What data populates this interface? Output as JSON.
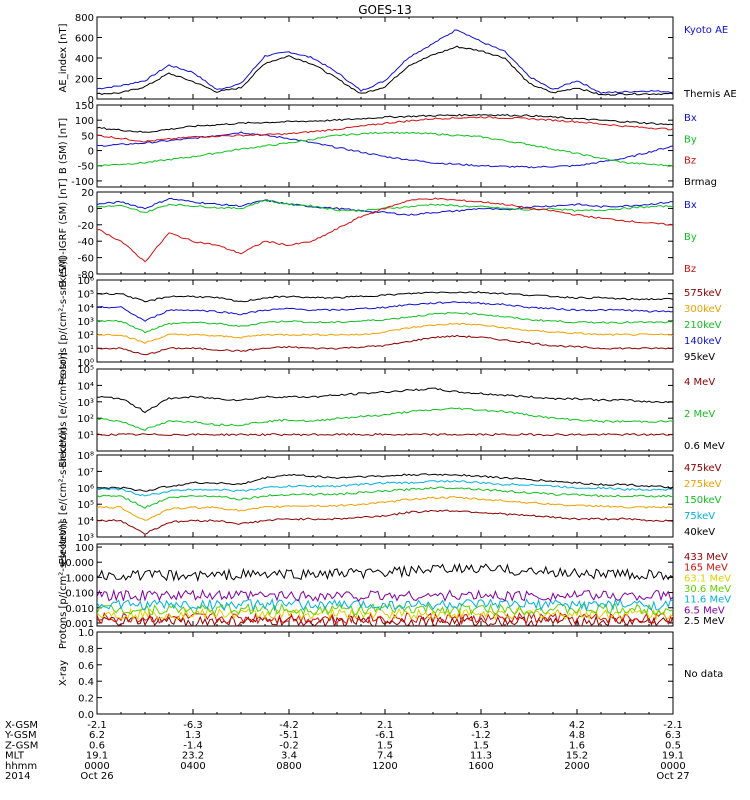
{
  "title": "GOES-13",
  "colors": {
    "black": "#000000",
    "blue": "#1010d0",
    "green": "#10c020",
    "red": "#d01010",
    "darkred": "#8b0000",
    "orange": "#f0a000",
    "cyan": "#00b0e0",
    "purple": "#8000a0",
    "yellow": "#e0d000",
    "lime": "#60d000"
  },
  "chart_data": [
    {
      "type": "line",
      "ylabel": "AE_index [nT]",
      "ylim": [
        0,
        800
      ],
      "ticks": [
        0,
        200,
        400,
        600,
        800
      ],
      "tick_labels": [
        "0",
        "200",
        "400",
        "600",
        "800"
      ],
      "log": false,
      "x_hours": [
        0,
        1,
        2,
        3,
        4,
        5,
        6,
        7,
        8,
        9,
        10,
        11,
        12,
        13,
        14,
        15,
        16,
        17,
        18,
        19,
        20,
        21,
        22,
        23,
        24
      ],
      "series": [
        {
          "name": "Kyoto AE",
          "color": "blue",
          "values": [
            100,
            130,
            180,
            330,
            260,
            90,
            150,
            420,
            460,
            400,
            260,
            80,
            180,
            410,
            540,
            680,
            560,
            460,
            220,
            90,
            180,
            60,
            70,
            80,
            70
          ]
        },
        {
          "name": "Themis AE",
          "color": "black",
          "values": [
            50,
            60,
            120,
            250,
            170,
            70,
            110,
            350,
            420,
            340,
            200,
            50,
            120,
            330,
            430,
            510,
            470,
            400,
            150,
            60,
            110,
            40,
            50,
            50,
            50
          ]
        }
      ]
    },
    {
      "type": "line",
      "ylabel": "B (SM) [nT]",
      "ylim": [
        -120,
        150
      ],
      "ticks": [
        -100,
        -50,
        0,
        50,
        100,
        150
      ],
      "tick_labels": [
        "-100",
        "-50",
        "0",
        "50",
        "100",
        "150"
      ],
      "log": false,
      "x_hours": [
        0,
        2,
        4,
        6,
        8,
        10,
        12,
        14,
        16,
        18,
        20,
        22,
        24
      ],
      "series": [
        {
          "name": "Bx",
          "color": "blue",
          "values": [
            15,
            25,
            40,
            60,
            40,
            10,
            -20,
            -40,
            -50,
            -55,
            -50,
            -25,
            15
          ]
        },
        {
          "name": "By",
          "color": "green",
          "values": [
            -50,
            -40,
            -20,
            5,
            25,
            50,
            60,
            55,
            45,
            20,
            -10,
            -40,
            -50
          ]
        },
        {
          "name": "Bz",
          "color": "red",
          "values": [
            50,
            30,
            45,
            50,
            55,
            70,
            90,
            105,
            110,
            105,
            95,
            80,
            70
          ]
        },
        {
          "name": "Brmag",
          "color": "black",
          "values": [
            75,
            60,
            80,
            90,
            95,
            100,
            110,
            115,
            118,
            115,
            105,
            95,
            85
          ]
        }
      ]
    },
    {
      "type": "line",
      "ylabel": "B (SM)-IGRF (SM) [nT]",
      "ylim": [
        -80,
        20
      ],
      "ticks": [
        -80,
        -60,
        -40,
        -20,
        0,
        20
      ],
      "tick_labels": [
        "-80",
        "-60",
        "-40",
        "-20",
        "0",
        "20"
      ],
      "log": false,
      "x_hours": [
        0,
        1,
        2,
        3,
        4,
        5,
        6,
        7,
        8,
        9,
        10,
        11,
        12,
        13,
        14,
        15,
        16,
        17,
        18,
        19,
        20,
        21,
        22,
        23,
        24
      ],
      "series": [
        {
          "name": "Bx",
          "color": "blue",
          "values": [
            5,
            8,
            0,
            12,
            8,
            5,
            3,
            10,
            5,
            2,
            0,
            -3,
            -5,
            -8,
            -5,
            -3,
            0,
            -2,
            2,
            3,
            5,
            2,
            3,
            5,
            8
          ]
        },
        {
          "name": "By",
          "color": "green",
          "values": [
            2,
            3,
            -5,
            5,
            3,
            1,
            0,
            10,
            5,
            3,
            -2,
            -3,
            0,
            2,
            5,
            3,
            2,
            0,
            -2,
            0,
            -3,
            -2,
            0,
            2,
            3
          ]
        },
        {
          "name": "Bz",
          "color": "red",
          "values": [
            -25,
            -40,
            -65,
            -30,
            -40,
            -45,
            -55,
            -40,
            -45,
            -40,
            -25,
            -10,
            0,
            10,
            12,
            10,
            8,
            5,
            0,
            -3,
            -8,
            -12,
            -15,
            -18,
            -20
          ]
        }
      ]
    },
    {
      "type": "line",
      "ylabel": "Protons [p/(cm²-s-sr-keV)]",
      "ylim": [
        0,
        6
      ],
      "ticks": [
        0,
        1,
        2,
        3,
        4,
        5,
        6
      ],
      "tick_labels": [
        "10⁰",
        "10¹",
        "10²",
        "10³",
        "10⁴",
        "10⁵",
        "10⁶"
      ],
      "log": true,
      "x_hours": [
        0,
        1,
        2,
        3,
        4,
        5,
        6,
        7,
        8,
        9,
        10,
        11,
        12,
        13,
        14,
        15,
        16,
        17,
        18,
        19,
        20,
        21,
        22,
        23,
        24
      ],
      "series": [
        {
          "name": "575keV",
          "color": "darkred",
          "values": [
            1.0,
            1.0,
            0.5,
            1.0,
            1.0,
            0.9,
            0.8,
            1.0,
            1.1,
            1.0,
            1.0,
            1.1,
            1.2,
            1.5,
            1.8,
            1.9,
            1.8,
            1.6,
            1.4,
            1.2,
            1.1,
            1.0,
            1.0,
            1.0,
            1.0
          ]
        },
        {
          "name": "300keV",
          "color": "orange",
          "values": [
            2.0,
            2.0,
            1.4,
            2.0,
            2.0,
            1.9,
            1.8,
            2.0,
            2.0,
            2.0,
            2.0,
            2.0,
            2.2,
            2.5,
            2.7,
            2.8,
            2.7,
            2.5,
            2.3,
            2.2,
            2.1,
            2.0,
            2.0,
            2.0,
            2.0
          ]
        },
        {
          "name": "210keV",
          "color": "green",
          "values": [
            3.0,
            3.0,
            2.2,
            2.8,
            2.9,
            2.8,
            2.6,
            2.9,
            3.0,
            2.9,
            2.9,
            3.0,
            3.1,
            3.3,
            3.5,
            3.6,
            3.5,
            3.3,
            3.1,
            3.0,
            2.9,
            2.9,
            2.9,
            2.9,
            2.9
          ]
        },
        {
          "name": "140keV",
          "color": "blue",
          "values": [
            4.0,
            4.0,
            3.0,
            3.8,
            3.8,
            3.7,
            3.5,
            3.8,
            3.9,
            3.8,
            3.8,
            3.9,
            4.0,
            4.2,
            4.3,
            4.4,
            4.3,
            4.2,
            4.0,
            3.9,
            3.8,
            3.8,
            3.8,
            3.7,
            3.7
          ]
        },
        {
          "name": "95keV",
          "color": "black",
          "values": [
            5.0,
            5.0,
            4.4,
            4.8,
            4.8,
            4.7,
            4.4,
            4.7,
            4.8,
            4.7,
            4.7,
            4.8,
            4.9,
            5.0,
            5.1,
            5.1,
            5.1,
            5.0,
            4.9,
            4.8,
            4.7,
            4.7,
            4.6,
            4.6,
            4.6
          ]
        }
      ]
    },
    {
      "type": "line",
      "ylabel": "Electrons [e/(cm²-s-sr)]",
      "ylim": [
        0,
        5
      ],
      "ticks": [
        1,
        2,
        3,
        4,
        5
      ],
      "tick_labels": [
        "10¹",
        "10²",
        "10³",
        "10⁴",
        "10⁵"
      ],
      "log": true,
      "x_hours": [
        0,
        1,
        2,
        3,
        4,
        5,
        6,
        7,
        8,
        9,
        10,
        11,
        12,
        13,
        14,
        15,
        16,
        17,
        18,
        19,
        20,
        21,
        22,
        23,
        24
      ],
      "series": [
        {
          "name": "4 MeV",
          "color": "darkred",
          "values": [
            1.0,
            1.0,
            1.0,
            1.0,
            1.0,
            1.0,
            1.0,
            1.0,
            1.0,
            1.0,
            1.0,
            1.0,
            1.0,
            1.0,
            1.0,
            1.0,
            1.0,
            1.0,
            1.0,
            1.0,
            1.0,
            1.0,
            1.0,
            1.0,
            1.0
          ]
        },
        {
          "name": "2 MeV",
          "color": "green",
          "values": [
            2.0,
            1.8,
            1.3,
            1.8,
            1.8,
            1.6,
            1.6,
            1.8,
            1.9,
            1.8,
            2.0,
            2.1,
            2.2,
            2.4,
            2.5,
            2.6,
            2.5,
            2.4,
            2.2,
            2.0,
            1.9,
            1.8,
            1.8,
            1.8,
            1.8
          ]
        },
        {
          "name": "0.6 MeV",
          "color": "black",
          "values": [
            3.3,
            3.2,
            2.4,
            3.2,
            3.3,
            3.2,
            3.1,
            3.3,
            3.3,
            3.3,
            3.4,
            3.5,
            3.6,
            3.7,
            3.8,
            3.6,
            3.5,
            3.4,
            3.3,
            3.2,
            3.2,
            3.1,
            3.1,
            3.0,
            3.0
          ]
        }
      ]
    },
    {
      "type": "line",
      "ylabel": "Electrons [e/(cm²-s-sr-keV)]",
      "ylim": [
        3,
        8
      ],
      "ticks": [
        3,
        4,
        5,
        6,
        7,
        8
      ],
      "tick_labels": [
        "10³",
        "10⁴",
        "10⁵",
        "10⁶",
        "10⁷",
        "10⁸"
      ],
      "log": true,
      "x_hours": [
        0,
        1,
        2,
        3,
        4,
        5,
        6,
        7,
        8,
        9,
        10,
        11,
        12,
        13,
        14,
        15,
        16,
        17,
        18,
        19,
        20,
        21,
        22,
        23,
        24
      ],
      "series": [
        {
          "name": "475keV",
          "color": "darkred",
          "values": [
            4.0,
            4.0,
            3.2,
            3.9,
            4.0,
            4.0,
            3.8,
            4.0,
            4.1,
            4.1,
            4.1,
            4.2,
            4.3,
            4.5,
            4.6,
            4.6,
            4.5,
            4.4,
            4.3,
            4.2,
            4.1,
            4.1,
            4.1,
            4.0,
            4.0
          ]
        },
        {
          "name": "275keV",
          "color": "orange",
          "values": [
            4.8,
            4.8,
            4.0,
            4.7,
            4.8,
            4.8,
            4.6,
            4.8,
            4.9,
            4.9,
            4.9,
            5.0,
            5.1,
            5.3,
            5.4,
            5.4,
            5.3,
            5.2,
            5.1,
            5.0,
            4.9,
            4.9,
            4.8,
            4.8,
            4.8
          ]
        },
        {
          "name": "150keV",
          "color": "green",
          "values": [
            5.5,
            5.5,
            4.8,
            5.4,
            5.5,
            5.5,
            5.3,
            5.5,
            5.6,
            5.6,
            5.6,
            5.7,
            5.8,
            5.9,
            6.0,
            6.0,
            5.9,
            5.8,
            5.7,
            5.6,
            5.6,
            5.5,
            5.5,
            5.5,
            5.5
          ]
        },
        {
          "name": "75keV",
          "color": "cyan",
          "values": [
            5.9,
            5.9,
            5.5,
            5.8,
            5.9,
            5.9,
            5.8,
            6.0,
            6.1,
            6.1,
            6.1,
            6.2,
            6.3,
            6.3,
            6.4,
            6.4,
            6.3,
            6.2,
            6.2,
            6.1,
            6.0,
            6.0,
            5.9,
            5.9,
            5.9
          ]
        },
        {
          "name": "40keV",
          "color": "black",
          "values": [
            6.0,
            6.0,
            5.8,
            6.1,
            6.3,
            6.3,
            6.2,
            6.6,
            6.8,
            6.7,
            6.6,
            6.7,
            6.7,
            6.8,
            6.8,
            6.8,
            6.7,
            6.6,
            6.5,
            6.4,
            6.3,
            6.2,
            6.2,
            6.1,
            6.0
          ]
        }
      ]
    },
    {
      "type": "line",
      "ylabel": "Protons [p/(cm²-s-sr-keV)]",
      "ylim": [
        -3.2,
        2.2
      ],
      "ticks": [
        -3,
        -2,
        -1,
        0,
        1,
        2
      ],
      "tick_labels": [
        "0.001",
        "0.010",
        "0.100",
        "1.000",
        "10.000",
        "100"
      ],
      "log": true,
      "x_hours": [
        0,
        2,
        4,
        6,
        8,
        10,
        12,
        14,
        16,
        18,
        20,
        22,
        24
      ],
      "series": [
        {
          "name": "433 MeV",
          "color": "darkred",
          "values": [
            -2.9,
            -2.9,
            -2.9,
            -2.9,
            -2.9,
            -2.9,
            -2.9,
            -2.9,
            -2.9,
            -2.9,
            -2.9,
            -2.9,
            -2.9
          ]
        },
        {
          "name": "165 MeV",
          "color": "red",
          "values": [
            -2.7,
            -2.7,
            -2.7,
            -2.7,
            -2.7,
            -2.7,
            -2.7,
            -2.7,
            -2.7,
            -2.7,
            -2.7,
            -2.7,
            -2.7
          ]
        },
        {
          "name": "63.1 MeV",
          "color": "yellow",
          "values": [
            -2.4,
            -2.4,
            -2.4,
            -2.4,
            -2.4,
            -2.4,
            -2.4,
            -2.4,
            -2.4,
            -2.4,
            -2.4,
            -2.4,
            -2.4
          ]
        },
        {
          "name": "30.6 MeV",
          "color": "lime",
          "values": [
            -2.1,
            -2.1,
            -2.1,
            -2.1,
            -2.1,
            -2.1,
            -2.1,
            -2.1,
            -2.1,
            -2.1,
            -2.1,
            -2.1,
            -2.1
          ]
        },
        {
          "name": "11.6 MeV",
          "color": "cyan",
          "values": [
            -1.8,
            -1.8,
            -1.8,
            -1.8,
            -1.8,
            -1.8,
            -1.8,
            -1.8,
            -1.8,
            -1.8,
            -1.8,
            -1.8,
            -1.8
          ]
        },
        {
          "name": "6.5 MeV",
          "color": "purple",
          "values": [
            -1.2,
            -1.2,
            -1.2,
            -1.2,
            -1.2,
            -1.2,
            -1.2,
            -1.2,
            -1.2,
            -1.2,
            -1.2,
            -1.2,
            -1.2
          ]
        },
        {
          "name": "2.5 MeV",
          "color": "black",
          "values": [
            0.1,
            0.15,
            0.1,
            0.2,
            0.2,
            0.25,
            0.3,
            0.5,
            0.6,
            0.4,
            0.3,
            0.2,
            0.1
          ]
        }
      ]
    },
    {
      "type": "line",
      "ylabel": "X-ray",
      "ylim": [
        0,
        1
      ],
      "ticks": [
        0,
        0.2,
        0.4,
        0.6,
        0.8,
        1.0
      ],
      "tick_labels": [
        "0.0",
        "0.2",
        "0.4",
        "0.6",
        "0.8",
        "1.0"
      ],
      "log": false,
      "x_hours": [],
      "series": [],
      "note": "No data"
    }
  ],
  "x_axis": {
    "rows": [
      {
        "label": "X-GSM",
        "values": [
          "-2.1",
          "-6.3",
          "-4.2",
          "2.1",
          "6.3",
          "4.2",
          "-2.1"
        ]
      },
      {
        "label": "Y-GSM",
        "values": [
          "6.2",
          "1.3",
          "-5.1",
          "-6.1",
          "-1.2",
          "4.8",
          "6.3"
        ]
      },
      {
        "label": "Z-GSM",
        "values": [
          "0.6",
          "-1.4",
          "-0.2",
          "1.5",
          "1.5",
          "1.6",
          "0.5"
        ]
      },
      {
        "label": "MLT",
        "values": [
          "19.1",
          "23.2",
          "3.4",
          "7.4",
          "11.3",
          "15.2",
          "19.1"
        ]
      },
      {
        "label": "hhmm",
        "values": [
          "0000",
          "0400",
          "0800",
          "1200",
          "1600",
          "2000",
          "0000"
        ]
      },
      {
        "label": "2014",
        "values": [
          "Oct 26",
          "",
          "",
          "",
          "",
          "",
          "Oct 27"
        ]
      }
    ],
    "tick_hours": [
      0,
      4,
      8,
      12,
      16,
      20,
      24
    ]
  }
}
